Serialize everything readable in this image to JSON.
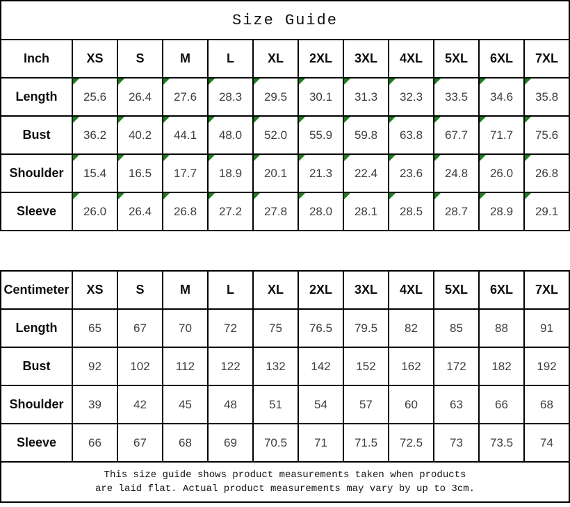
{
  "title": "Size Guide",
  "colors": {
    "border": "#000000",
    "marker_green": "#1e7d1e",
    "label_text": "#0d0d0d",
    "value_text": "#3d3d3d",
    "background": "#ffffff"
  },
  "chart_data": [
    {
      "type": "table",
      "title": "Size Guide",
      "unit": "Inch",
      "columns": [
        "XS",
        "S",
        "M",
        "L",
        "XL",
        "2XL",
        "3XL",
        "4XL",
        "5XL",
        "6XL",
        "7XL"
      ],
      "corner_markers": true,
      "rows": [
        {
          "label": "Length",
          "values": [
            "25.6",
            "26.4",
            "27.6",
            "28.3",
            "29.5",
            "30.1",
            "31.3",
            "32.3",
            "33.5",
            "34.6",
            "35.8"
          ]
        },
        {
          "label": "Bust",
          "values": [
            "36.2",
            "40.2",
            "44.1",
            "48.0",
            "52.0",
            "55.9",
            "59.8",
            "63.8",
            "67.7",
            "71.7",
            "75.6"
          ]
        },
        {
          "label": "Shoulder",
          "values": [
            "15.4",
            "16.5",
            "17.7",
            "18.9",
            "20.1",
            "21.3",
            "22.4",
            "23.6",
            "24.8",
            "26.0",
            "26.8"
          ]
        },
        {
          "label": "Sleeve",
          "values": [
            "26.0",
            "26.4",
            "26.8",
            "27.2",
            "27.8",
            "28.0",
            "28.1",
            "28.5",
            "28.7",
            "28.9",
            "29.1"
          ]
        }
      ]
    },
    {
      "type": "table",
      "title": "Size Guide",
      "unit": "Centimeter",
      "columns": [
        "XS",
        "S",
        "M",
        "L",
        "XL",
        "2XL",
        "3XL",
        "4XL",
        "5XL",
        "6XL",
        "7XL"
      ],
      "corner_markers": false,
      "rows": [
        {
          "label": "Length",
          "values": [
            "65",
            "67",
            "70",
            "72",
            "75",
            "76.5",
            "79.5",
            "82",
            "85",
            "88",
            "91"
          ]
        },
        {
          "label": "Bust",
          "values": [
            "92",
            "102",
            "112",
            "122",
            "132",
            "142",
            "152",
            "162",
            "172",
            "182",
            "192"
          ]
        },
        {
          "label": "Shoulder",
          "values": [
            "39",
            "42",
            "45",
            "48",
            "51",
            "54",
            "57",
            "60",
            "63",
            "66",
            "68"
          ]
        },
        {
          "label": "Sleeve",
          "values": [
            "66",
            "67",
            "68",
            "69",
            "70.5",
            "71",
            "71.5",
            "72.5",
            "73",
            "73.5",
            "74"
          ]
        }
      ]
    }
  ],
  "footer": {
    "line1": "This size guide shows product measurements taken when products",
    "line2": "are laid flat. Actual product measurements may vary by up to 3cm."
  }
}
